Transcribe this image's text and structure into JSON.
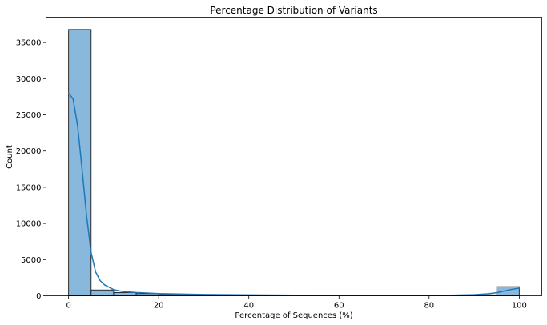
{
  "chart_data": {
    "type": "bar",
    "title": "Percentage Distribution of Variants",
    "xlabel": "Percentage of Sequences (%)",
    "ylabel": "Count",
    "xlim": [
      -5,
      105
    ],
    "ylim": [
      0,
      38500
    ],
    "xticks": [
      0,
      20,
      40,
      60,
      80,
      100
    ],
    "yticks": [
      0,
      5000,
      10000,
      15000,
      20000,
      25000,
      30000,
      35000
    ],
    "grid": false,
    "legend": "none",
    "bins": [
      {
        "start": 0,
        "end": 5,
        "count": 36800
      },
      {
        "start": 5,
        "end": 10,
        "count": 800
      },
      {
        "start": 10,
        "end": 15,
        "count": 450
      },
      {
        "start": 15,
        "end": 20,
        "count": 300
      },
      {
        "start": 20,
        "end": 25,
        "count": 230
      },
      {
        "start": 25,
        "end": 30,
        "count": 180
      },
      {
        "start": 30,
        "end": 35,
        "count": 150
      },
      {
        "start": 35,
        "end": 40,
        "count": 120
      },
      {
        "start": 40,
        "end": 45,
        "count": 100
      },
      {
        "start": 45,
        "end": 50,
        "count": 90
      },
      {
        "start": 50,
        "end": 55,
        "count": 80
      },
      {
        "start": 55,
        "end": 60,
        "count": 70
      },
      {
        "start": 60,
        "end": 65,
        "count": 60
      },
      {
        "start": 65,
        "end": 70,
        "count": 60
      },
      {
        "start": 70,
        "end": 75,
        "count": 60
      },
      {
        "start": 75,
        "end": 80,
        "count": 60
      },
      {
        "start": 80,
        "end": 85,
        "count": 70
      },
      {
        "start": 85,
        "end": 90,
        "count": 80
      },
      {
        "start": 90,
        "end": 95,
        "count": 130
      },
      {
        "start": 95,
        "end": 100,
        "count": 1250
      }
    ],
    "kde": {
      "x": [
        0,
        1,
        2,
        3,
        4,
        5,
        6,
        7,
        8,
        10,
        12,
        15,
        20,
        30,
        40,
        50,
        60,
        70,
        80,
        85,
        90,
        93,
        95,
        97,
        98,
        100
      ],
      "y": [
        28000,
        27200,
        23500,
        17500,
        11000,
        6000,
        3300,
        2100,
        1500,
        850,
        600,
        450,
        300,
        180,
        120,
        90,
        70,
        60,
        70,
        90,
        150,
        280,
        430,
        700,
        850,
        1050
      ]
    },
    "colors": {
      "bar_fill": "#88b8db",
      "bar_edge": "#1a1a1a",
      "kde_line": "#1f77b4"
    }
  }
}
